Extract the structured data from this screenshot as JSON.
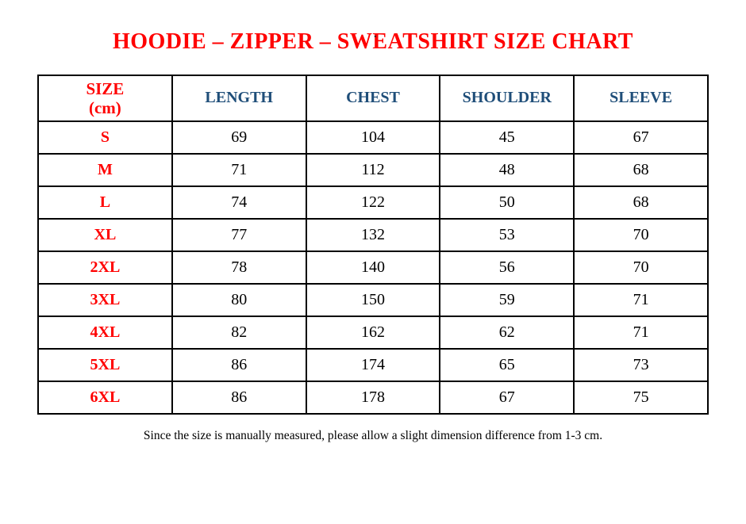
{
  "page": {
    "stray_mark": ".",
    "title": "HOODIE – ZIPPER – SWEATSHIRT SIZE CHART",
    "footnote": "Since the size is manually measured, please allow a slight dimension difference from 1-3 cm."
  },
  "colors": {
    "title_red": "#FF0000",
    "size_column_red": "#FF0000",
    "header_navy": "#1F4E79",
    "value_black": "#000000",
    "border_black": "#000000",
    "background": "#FFFFFF"
  },
  "table": {
    "header": {
      "size_line1": "SIZE",
      "size_line2": "(cm)",
      "cols": [
        "LENGTH",
        "CHEST",
        "SHOULDER",
        "SLEEVE"
      ]
    },
    "rows": [
      {
        "size": "S",
        "length": "69",
        "chest": "104",
        "shoulder": "45",
        "sleeve": "67"
      },
      {
        "size": "M",
        "length": "71",
        "chest": "112",
        "shoulder": "48",
        "sleeve": "68"
      },
      {
        "size": "L",
        "length": "74",
        "chest": "122",
        "shoulder": "50",
        "sleeve": "68"
      },
      {
        "size": "XL",
        "length": "77",
        "chest": "132",
        "shoulder": "53",
        "sleeve": "70"
      },
      {
        "size": "2XL",
        "length": "78",
        "chest": "140",
        "shoulder": "56",
        "sleeve": "70"
      },
      {
        "size": "3XL",
        "length": "80",
        "chest": "150",
        "shoulder": "59",
        "sleeve": "71"
      },
      {
        "size": "4XL",
        "length": "82",
        "chest": "162",
        "shoulder": "62",
        "sleeve": "71"
      },
      {
        "size": "5XL",
        "length": "86",
        "chest": "174",
        "shoulder": "65",
        "sleeve": "73"
      },
      {
        "size": "6XL",
        "length": "86",
        "chest": "178",
        "shoulder": "67",
        "sleeve": "75"
      }
    ]
  }
}
